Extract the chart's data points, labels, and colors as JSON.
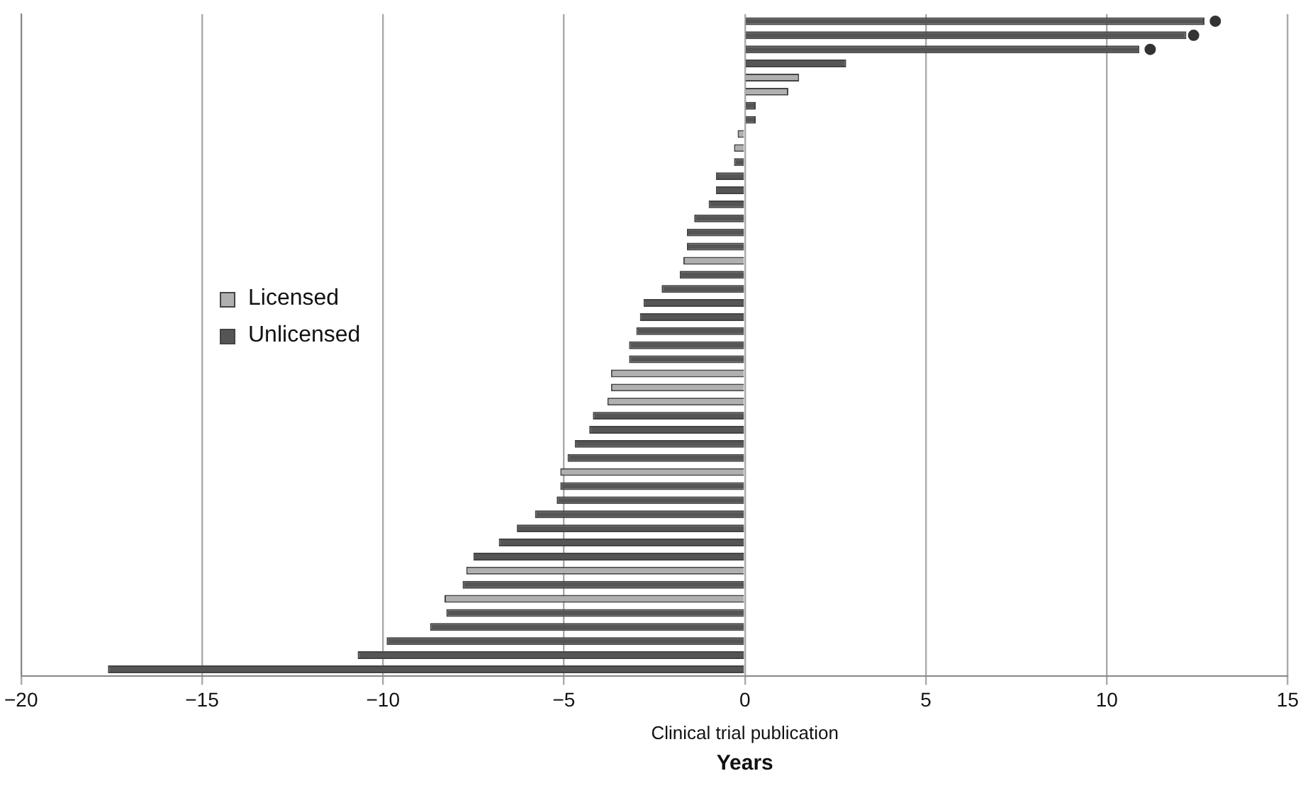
{
  "chart_data": {
    "type": "bar",
    "orientation": "horizontal",
    "xlabel": "Years",
    "annotations": [
      "Clinical trial publication"
    ],
    "categories": [
      null,
      null,
      null,
      null,
      null,
      null,
      null,
      null,
      null,
      null,
      null,
      null,
      null,
      null,
      null,
      null,
      null,
      null,
      null,
      null,
      null,
      null,
      null,
      null,
      null,
      null,
      null,
      null,
      null,
      null,
      null,
      null,
      null,
      null,
      null,
      null,
      null,
      null,
      null,
      null,
      null,
      null,
      null,
      null,
      null,
      null,
      null
    ],
    "series": [
      {
        "name": "Licensed",
        "color": "#b0b0b0",
        "values": [
          null,
          null,
          null,
          null,
          1.5,
          1.2,
          null,
          null,
          -0.2,
          -0.3,
          null,
          null,
          null,
          null,
          null,
          null,
          null,
          -1.7,
          null,
          null,
          null,
          null,
          null,
          null,
          null,
          -3.7,
          -3.7,
          -3.8,
          null,
          null,
          null,
          null,
          -5.1,
          null,
          null,
          null,
          null,
          null,
          null,
          -7.7,
          null,
          -8.3,
          null,
          null,
          null,
          null,
          null
        ]
      },
      {
        "name": "Unlicensed",
        "color": "#555555",
        "values": [
          12.7,
          12.2,
          10.9,
          2.8,
          null,
          null,
          0.3,
          0.3,
          null,
          null,
          -0.3,
          -0.8,
          -0.8,
          -1.0,
          -1.4,
          -1.6,
          -1.6,
          null,
          -1.8,
          -2.3,
          -2.8,
          -2.9,
          -3.0,
          -3.2,
          -3.2,
          null,
          null,
          null,
          -4.2,
          -4.3,
          -4.7,
          -4.9,
          null,
          -5.1,
          -5.2,
          -5.8,
          -6.3,
          -6.8,
          -7.5,
          null,
          -7.8,
          null,
          -8.25,
          -8.7,
          -9.9,
          -10.7,
          -17.6
        ]
      },
      {
        "type": "scatter",
        "color": "#333333",
        "marker": "circle",
        "values": [
          13.0,
          12.4,
          11.2,
          null,
          null,
          null,
          null,
          null,
          null,
          null,
          null,
          null,
          null,
          null,
          null,
          null,
          null,
          null,
          null,
          null,
          null,
          null,
          null,
          null,
          null,
          null,
          null,
          null,
          null,
          null,
          null,
          null,
          null,
          null,
          null,
          null,
          null,
          null,
          null,
          null,
          null,
          null,
          null,
          null,
          null,
          null,
          null
        ]
      }
    ],
    "xlim": [
      -20,
      15
    ],
    "xticks": [
      -20,
      -15,
      -10,
      -5,
      0,
      5,
      10,
      15
    ],
    "grid": "x",
    "tick_labels": "x",
    "legend": "left"
  }
}
